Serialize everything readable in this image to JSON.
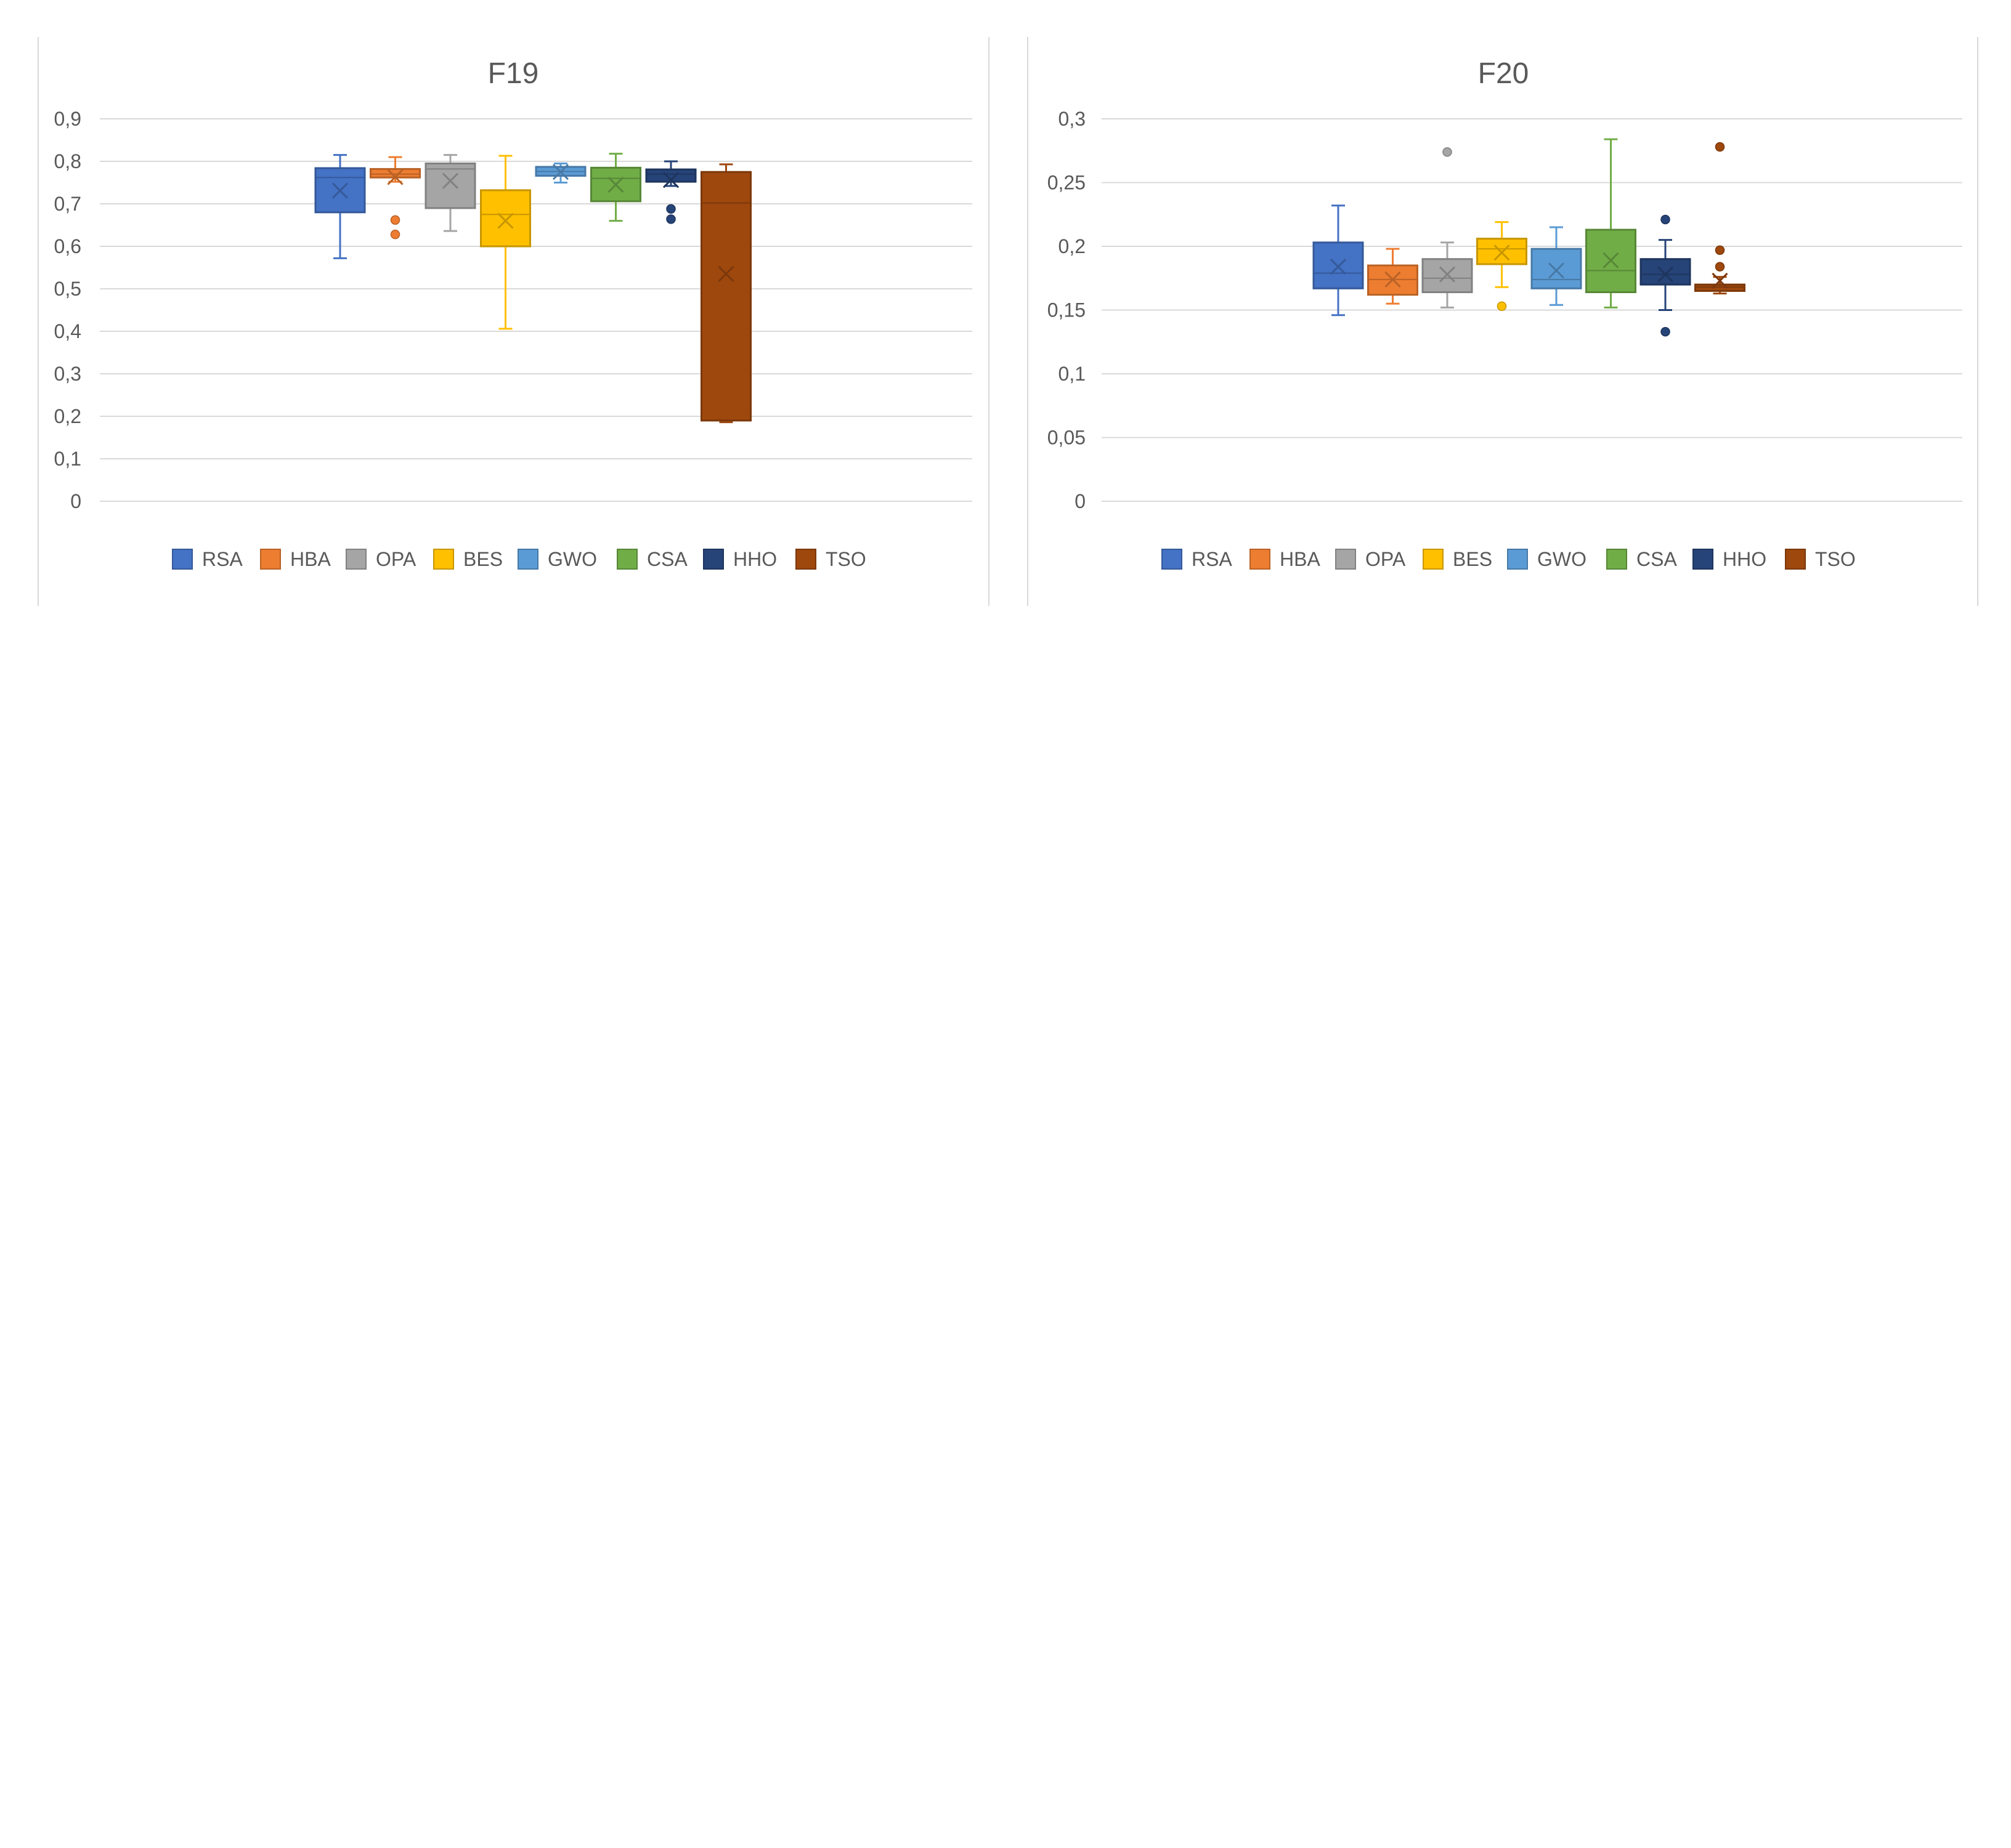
{
  "series_names": [
    "RSA",
    "HBA",
    "OPA",
    "BES",
    "GWO",
    "CSA",
    "HHO",
    "TSO"
  ],
  "series_colors": [
    "#4472C4",
    "#ED7D31",
    "#A5A5A5",
    "#FFC000",
    "#5B9BD5",
    "#70AD47",
    "#264478",
    "#9E480E"
  ],
  "chart_data": [
    {
      "type": "boxplot",
      "title": "F19",
      "ylim": [
        0,
        0.9
      ],
      "yticks": [
        "0",
        "0,1",
        "0,2",
        "0,3",
        "0,4",
        "0,5",
        "0,6",
        "0,7",
        "0,8",
        "0,9"
      ],
      "ytick_values": [
        0,
        0.1,
        0.2,
        0.3,
        0.4,
        0.5,
        0.6,
        0.7,
        0.8,
        0.9
      ],
      "grid": true,
      "legend": "bottom",
      "series": [
        {
          "name": "RSA",
          "min": 0.572,
          "q1": 0.68,
          "median": 0.762,
          "q3": 0.784,
          "max": 0.815,
          "mean": 0.731,
          "outliers": []
        },
        {
          "name": "HBA",
          "min": 0.752,
          "q1": 0.762,
          "median": 0.77,
          "q3": 0.782,
          "max": 0.81,
          "mean": 0.763,
          "outliers": [
            0.662,
            0.628
          ]
        },
        {
          "name": "OPA",
          "min": 0.636,
          "q1": 0.69,
          "median": 0.782,
          "q3": 0.795,
          "max": 0.815,
          "mean": 0.754,
          "outliers": []
        },
        {
          "name": "BES",
          "min": 0.406,
          "q1": 0.6,
          "median": 0.675,
          "q3": 0.732,
          "max": 0.813,
          "mean": 0.66,
          "outliers": []
        },
        {
          "name": "GWO",
          "min": 0.75,
          "q1": 0.766,
          "median": 0.776,
          "q3": 0.787,
          "max": 0.795,
          "mean": 0.775,
          "outliers": []
        },
        {
          "name": "CSA",
          "min": 0.66,
          "q1": 0.706,
          "median": 0.76,
          "q3": 0.785,
          "max": 0.818,
          "mean": 0.745,
          "outliers": []
        },
        {
          "name": "HHO",
          "min": 0.742,
          "q1": 0.752,
          "median": 0.77,
          "q3": 0.781,
          "max": 0.8,
          "mean": 0.756,
          "outliers": [
            0.688,
            0.664
          ]
        },
        {
          "name": "TSO",
          "min": 0.186,
          "q1": 0.19,
          "median": 0.702,
          "q3": 0.775,
          "max": 0.793,
          "mean": 0.535,
          "outliers": []
        }
      ]
    },
    {
      "type": "boxplot",
      "title": "F20",
      "ylim": [
        0,
        0.3
      ],
      "yticks": [
        "0",
        "0,05",
        "0,1",
        "0,15",
        "0,2",
        "0,25",
        "0,3"
      ],
      "ytick_values": [
        0,
        0.05,
        0.1,
        0.15,
        0.2,
        0.25,
        0.3
      ],
      "grid": true,
      "legend": "bottom",
      "series": [
        {
          "name": "RSA",
          "min": 0.146,
          "q1": 0.167,
          "median": 0.179,
          "q3": 0.203,
          "max": 0.232,
          "mean": 0.184,
          "outliers": []
        },
        {
          "name": "HBA",
          "min": 0.155,
          "q1": 0.162,
          "median": 0.174,
          "q3": 0.185,
          "max": 0.198,
          "mean": 0.174,
          "outliers": []
        },
        {
          "name": "OPA",
          "min": 0.152,
          "q1": 0.164,
          "median": 0.175,
          "q3": 0.19,
          "max": 0.203,
          "mean": 0.178,
          "outliers": [
            0.274
          ]
        },
        {
          "name": "BES",
          "min": 0.168,
          "q1": 0.186,
          "median": 0.198,
          "q3": 0.206,
          "max": 0.219,
          "mean": 0.195,
          "outliers": [
            0.153
          ]
        },
        {
          "name": "GWO",
          "min": 0.154,
          "q1": 0.167,
          "median": 0.174,
          "q3": 0.198,
          "max": 0.215,
          "mean": 0.181,
          "outliers": []
        },
        {
          "name": "CSA",
          "min": 0.152,
          "q1": 0.164,
          "median": 0.181,
          "q3": 0.213,
          "max": 0.284,
          "mean": 0.189,
          "outliers": []
        },
        {
          "name": "HHO",
          "min": 0.15,
          "q1": 0.17,
          "median": 0.178,
          "q3": 0.19,
          "max": 0.205,
          "mean": 0.178,
          "outliers": [
            0.221,
            0.133
          ]
        },
        {
          "name": "TSO",
          "min": 0.163,
          "q1": 0.165,
          "median": 0.168,
          "q3": 0.17,
          "max": 0.176,
          "mean": 0.173,
          "outliers": [
            0.278,
            0.197,
            0.184
          ]
        }
      ]
    }
  ]
}
